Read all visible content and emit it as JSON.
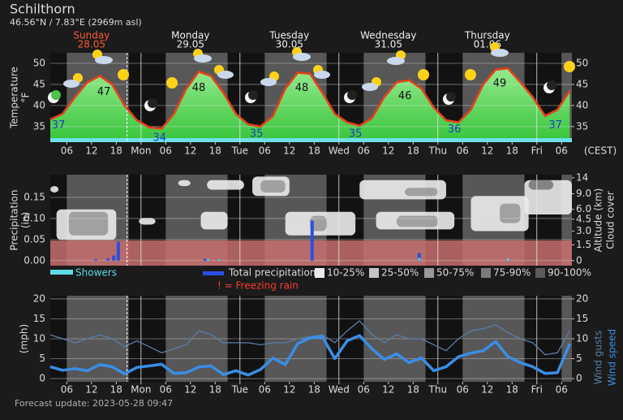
{
  "title": "Schilthorn",
  "subtitle": "46.56°N / 7.83°E (2969m asl)",
  "footer": "Forecast update: 2023-05-28 09:47",
  "timezone": "(CEST)",
  "now_hour": 20.6,
  "daylight": [
    [
      6,
      21
    ],
    [
      30,
      45
    ],
    [
      54,
      69
    ],
    [
      78,
      93
    ],
    [
      102,
      117
    ],
    [
      126,
      128.5
    ]
  ],
  "chart_data": [
    {
      "type": "area",
      "y_label": "Temperature",
      "y_unit": "°F",
      "color": "#e8401c",
      "day_labels": [
        {
          "name": "Sunday",
          "date": "28.05",
          "x": 12,
          "color": "#ff5a36"
        },
        {
          "name": "Monday",
          "date": "29.05",
          "x": 36
        },
        {
          "name": "Tuesday",
          "date": "30.05",
          "x": 60
        },
        {
          "name": "Wednesday",
          "date": "31.05",
          "x": 84
        },
        {
          "name": "Thursday",
          "date": "01.06",
          "x": 108
        }
      ],
      "x": [
        2,
        5,
        8,
        11,
        14,
        17,
        20,
        23,
        26,
        29,
        32,
        35,
        38,
        41,
        44,
        47,
        50,
        53,
        56,
        59,
        62,
        65,
        68,
        71,
        74,
        77,
        80,
        83,
        86,
        89,
        92,
        95,
        98,
        101,
        104,
        107,
        110,
        113,
        116,
        119,
        122,
        125,
        128
      ],
      "values": [
        36.7,
        38,
        42,
        45.5,
        47,
        45,
        40,
        36.5,
        34.8,
        34.5,
        38,
        44,
        48,
        47,
        43,
        38,
        35.5,
        35,
        37.5,
        44,
        47.8,
        47.5,
        43,
        38,
        36,
        35.2,
        37,
        42,
        45.5,
        46,
        44,
        39.5,
        36.5,
        36,
        39,
        45,
        48.5,
        48.8,
        45.5,
        42,
        37.5,
        39,
        43.5
      ],
      "minima": [
        {
          "x": 4,
          "value": 37
        },
        {
          "x": 28.5,
          "value": 34
        },
        {
          "x": 52,
          "value": 35
        },
        {
          "x": 76,
          "value": 35
        },
        {
          "x": 100,
          "value": 36
        },
        {
          "x": 124.5,
          "value": 37
        }
      ],
      "maxima": [
        {
          "x": 15,
          "value": 47
        },
        {
          "x": 38,
          "value": 48
        },
        {
          "x": 63,
          "value": 48
        },
        {
          "x": 88,
          "value": 46
        },
        {
          "x": 111,
          "value": 49
        }
      ],
      "xlim": [
        2,
        128.5
      ],
      "xticks": [
        {
          "value": 6,
          "label": "06"
        },
        12,
        18,
        {
          "value": 24,
          "label": "Mon"
        },
        {
          "value": 30,
          "label": "06"
        },
        {
          "value": 36,
          "label": "12"
        },
        {
          "value": 42,
          "label": "18"
        },
        {
          "value": 48,
          "label": "Tue"
        },
        {
          "value": 54,
          "label": "06"
        },
        {
          "value": 60,
          "label": "12"
        },
        {
          "value": 66,
          "label": "18"
        },
        {
          "value": 72,
          "label": "Wed"
        },
        {
          "value": 78,
          "label": "06"
        },
        {
          "value": 84,
          "label": "12"
        },
        {
          "value": 90,
          "label": "18"
        },
        {
          "value": 96,
          "label": "Thu"
        },
        {
          "value": 102,
          "label": "06"
        },
        {
          "value": 108,
          "label": "12"
        },
        {
          "value": 114,
          "label": "18"
        },
        {
          "value": 120,
          "label": "Fri"
        },
        {
          "value": 126,
          "label": "06"
        }
      ],
      "ylim": [
        31.3,
        52.5
      ],
      "yticks": [
        35,
        40,
        45,
        50
      ],
      "y2lim": [
        31.3,
        52.5
      ],
      "y2ticks": [
        35,
        40,
        45,
        50
      ],
      "grid": true
    },
    {
      "type": "bar",
      "y_label": "Precipitation",
      "y_unit": "(in)",
      "y2_label": "Altitude (km)",
      "y3_label": "Cloud cover",
      "y2_scale": "pressure",
      "series": [
        {
          "name": "Total precipitation",
          "color": "#2a4fe0",
          "x": [
            13,
            16,
            17.4,
            18.5,
            39.5,
            40.3,
            43,
            65.5,
            91.5,
            113
          ],
          "values": [
            0.003,
            0.005,
            0.012,
            0.045,
            0.004,
            0.003,
            0.002,
            0.095,
            0.018,
            0.003
          ]
        },
        {
          "name": "Showers",
          "color": "#5fdce4",
          "x": [
            40.3,
            43,
            91.5,
            113
          ],
          "values": [
            0.004,
            0.003,
            0.006,
            0.005
          ]
        }
      ],
      "note": "! = Freezing rain",
      "cloud_legend": [
        {
          "label": "10-25%",
          "color": "#ececec"
        },
        {
          "label": "25-50%",
          "color": "#c4c4c4"
        },
        {
          "label": "50-75%",
          "color": "#9a9a9a"
        },
        {
          "label": "75-90%",
          "color": "#7a7a7a"
        },
        {
          "label": "90-100%",
          "color": "#5c5c5c"
        }
      ],
      "clouds": [
        {
          "x0": 2,
          "x1": 4,
          "z0": 9.3,
          "z1": 11,
          "level": 0
        },
        {
          "x0": 3.5,
          "x1": 18,
          "z0": 2,
          "z1": 6,
          "level": 0
        },
        {
          "x0": 6.5,
          "x1": 16,
          "z0": 2.5,
          "z1": 5.6,
          "level": 2
        },
        {
          "x0": 23.5,
          "x1": 27.5,
          "z0": 3.8,
          "z1": 4.7,
          "level": 0
        },
        {
          "x0": 33,
          "x1": 36,
          "z0": 11,
          "z1": 13,
          "level": 0
        },
        {
          "x0": 38.5,
          "x1": 45,
          "z0": 3.2,
          "z1": 5.6,
          "level": 0
        },
        {
          "x0": 40,
          "x1": 49,
          "z0": 10,
          "z1": 13,
          "level": 0
        },
        {
          "x0": 51,
          "x1": 60,
          "z0": 8.5,
          "z1": 14.5,
          "level": 0
        },
        {
          "x0": 53,
          "x1": 59,
          "z0": 9.3,
          "z1": 13,
          "level": 2
        },
        {
          "x0": 59,
          "x1": 76,
          "z0": 2.5,
          "z1": 5.6,
          "level": 0
        },
        {
          "x0": 65,
          "x1": 69,
          "z0": 3,
          "z1": 5,
          "level": 2
        },
        {
          "x0": 81,
          "x1": 100,
          "z0": 3.2,
          "z1": 5.6,
          "level": 0
        },
        {
          "x0": 86,
          "x1": 96,
          "z0": 3.5,
          "z1": 5,
          "level": 2
        },
        {
          "x0": 77,
          "x1": 98,
          "z0": 7.8,
          "z1": 13,
          "level": 0
        },
        {
          "x0": 88,
          "x1": 96,
          "z0": 8.5,
          "z1": 10.5,
          "level": 2
        },
        {
          "x0": 104,
          "x1": 118,
          "z0": 3,
          "z1": 8.5,
          "level": 0
        },
        {
          "x0": 111,
          "x1": 116,
          "z0": 4,
          "z1": 7,
          "level": 2
        },
        {
          "x0": 117,
          "x1": 128.5,
          "z0": 5.2,
          "z1": 13,
          "level": 0
        },
        {
          "x0": 118,
          "x1": 124,
          "z0": 10,
          "z1": 13,
          "level": 3
        }
      ],
      "xlim": [
        2,
        128.5
      ],
      "ylim": [
        -0.012,
        0.204
      ],
      "yticks": [
        {
          "value": 0,
          "label": "0.00"
        },
        0.05,
        {
          "value": 0.1,
          "label": "0.10"
        },
        0.15
      ],
      "y2lim": [
        -0.43,
        15.5
      ],
      "y2ticks": [
        0,
        1.5,
        {
          "value": 3,
          "label": "3.0"
        },
        4.5,
        {
          "value": 6,
          "label": "6.0"
        },
        {
          "value": 9,
          "label": "9.0"
        },
        14
      ],
      "grid": true
    },
    {
      "type": "line",
      "y_unit": "(mph)",
      "x": [
        2,
        5,
        8,
        11,
        14,
        17,
        20,
        23,
        26,
        29,
        32,
        35,
        38,
        41,
        44,
        47,
        50,
        53,
        56,
        59,
        62,
        65,
        68,
        71,
        74,
        77,
        80,
        83,
        86,
        89,
        92,
        95,
        98,
        101,
        104,
        107,
        110,
        113,
        116,
        119,
        122,
        125,
        128
      ],
      "series": [
        {
          "name": "Wind gusts",
          "color": "#5a7ea6",
          "width": 1.3,
          "values": [
            11,
            10,
            9,
            10,
            11,
            10,
            8,
            9.5,
            8,
            6.5,
            7.5,
            8.5,
            12,
            11,
            9,
            9,
            9,
            8.5,
            9,
            9,
            10,
            10.5,
            11,
            9,
            12,
            14.5,
            11,
            9,
            11,
            10,
            10,
            8.5,
            7,
            10,
            12,
            12.5,
            13.5,
            11.5,
            10,
            9,
            6,
            6.5,
            12
          ]
        },
        {
          "name": "Wind speed",
          "color": "#3a8ee6",
          "width": 3.5,
          "values": [
            3.0,
            2.1,
            2.5,
            2.0,
            3.5,
            3.0,
            1.2,
            2.8,
            3.2,
            3.6,
            1.3,
            1.5,
            2.9,
            3.2,
            1.0,
            2.0,
            0.9,
            2.3,
            5.2,
            3.5,
            8.8,
            10.2,
            10.5,
            5.0,
            9.5,
            10.8,
            7.5,
            4.8,
            6.2,
            4.0,
            5.2,
            2.0,
            3.0,
            5.5,
            6.4,
            7.0,
            9.3,
            5.5,
            4.0,
            3.0,
            1.3,
            1.5,
            8.8
          ]
        }
      ],
      "xlim": [
        2,
        128.5
      ],
      "xticks": [
        {
          "value": 6,
          "label": "06"
        },
        12,
        18,
        {
          "value": 24,
          "label": "Mon"
        },
        {
          "value": 30,
          "label": "06"
        },
        {
          "value": 36,
          "label": "12"
        },
        {
          "value": 42,
          "label": "18"
        },
        {
          "value": 48,
          "label": "Tue"
        },
        {
          "value": 54,
          "label": "06"
        },
        {
          "value": 60,
          "label": "12"
        },
        {
          "value": 66,
          "label": "18"
        },
        {
          "value": 72,
          "label": "Wed"
        },
        {
          "value": 78,
          "label": "06"
        },
        {
          "value": 84,
          "label": "12"
        },
        {
          "value": 90,
          "label": "18"
        },
        {
          "value": 96,
          "label": "Thu"
        },
        {
          "value": 102,
          "label": "06"
        },
        {
          "value": 108,
          "label": "12"
        },
        {
          "value": 114,
          "label": "18"
        },
        {
          "value": 120,
          "label": "Fri"
        },
        {
          "value": 126,
          "label": "06"
        }
      ],
      "ylim": [
        -0.8,
        20.8
      ],
      "yticks": [
        0,
        5,
        10,
        15,
        20
      ],
      "y2lim": [
        -0.8,
        20.8
      ],
      "y2ticks": [
        0,
        5,
        10,
        15,
        20
      ],
      "grid": true
    }
  ]
}
